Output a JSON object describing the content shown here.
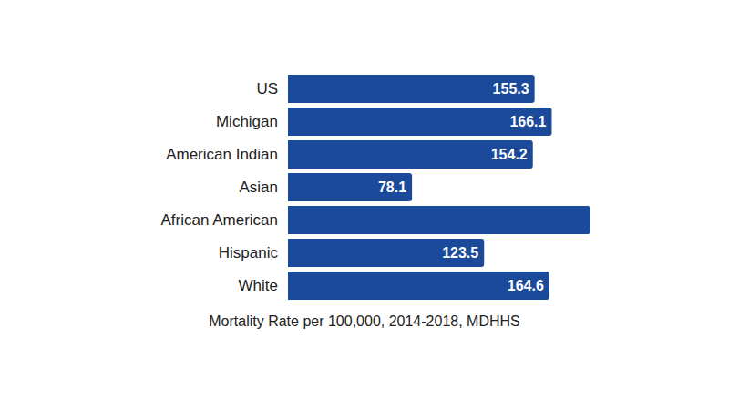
{
  "chart_data": {
    "type": "bar",
    "orientation": "horizontal",
    "x_label": "Mortality Rate per 100,000, 2014-2018, MDHHS",
    "categories": [
      "US",
      "Michigan",
      "American Indian",
      "Asian",
      "African American",
      "Hispanic",
      "White"
    ],
    "values": [
      155.3,
      166.1,
      154.2,
      78.1,
      190.5,
      123.5,
      164.6
    ],
    "value_labels": [
      "155.3",
      "166.1",
      "154.2",
      "78.1",
      null,
      "123.5",
      "164.6"
    ],
    "color": "#1b4a9b",
    "xlim": [
      0,
      190.5
    ],
    "xticks": [],
    "grid": false,
    "data_labels": true,
    "tick_labels": false
  }
}
